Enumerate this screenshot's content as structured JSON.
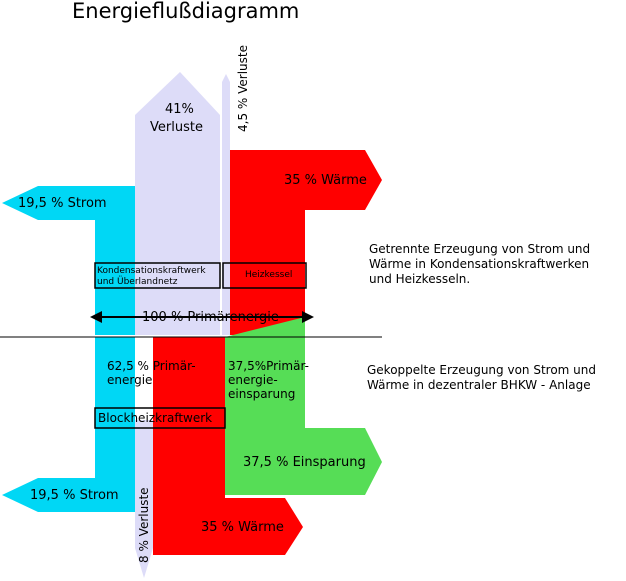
{
  "title": "Energieflußdiagramm",
  "colors": {
    "strom": "#00d7f5",
    "verluste": "#dddcf8",
    "waerme": "#ff0000",
    "einsparung": "#56dd56",
    "text": "#000000"
  },
  "top": {
    "strom": "19,5 % Strom",
    "verluste_pct": "41%",
    "verluste_word": "Verluste",
    "verluste_small": "4,5 % Verluste",
    "waerme": "35 % Wärme",
    "kondensation_line1": "Kondensationskraftwerk",
    "kondensation_line2": "und Überlandnetz",
    "heizkessel": "Heizkessel",
    "primaerenergie": "100 % Primärenergie"
  },
  "bottom": {
    "primaer_line1": "62,5 % Primär-",
    "primaer_line2": "energie",
    "einsparung_line1": "37,5%Primär-",
    "einsparung_line2": "energie-",
    "einsparung_line3": "einsparung",
    "blockheizkraftwerk": "Blockheizkraftwerk",
    "einsparung_arrow": "37,5 % Einsparung",
    "strom": "19,5 % Strom",
    "verluste": "8 % Verluste",
    "waerme": "35 % Wärme"
  },
  "notes": {
    "getrennt_line1": "Getrennte Erzeugung von Strom und",
    "getrennt_line2": "Wärme in Kondensationskraftwerken",
    "getrennt_line3": "und Heizkesseln.",
    "gekoppelt_line1": "Gekoppelte Erzeugung von Strom und",
    "gekoppelt_line2": "Wärme in dezentraler BHKW - Anlage"
  }
}
